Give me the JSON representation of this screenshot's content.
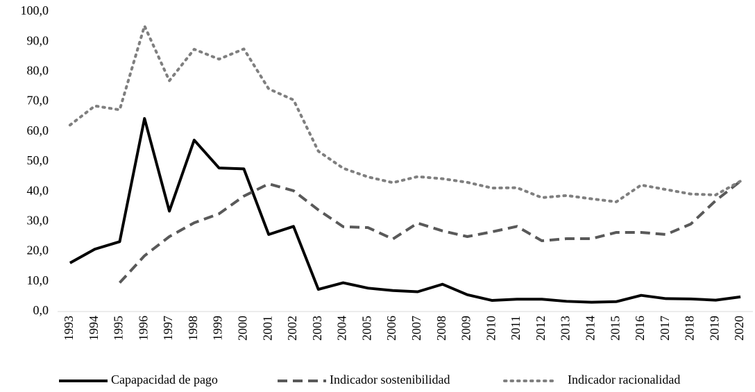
{
  "chart_data": {
    "type": "line",
    "categories": [
      "1993",
      "1994",
      "1995",
      "1996",
      "1997",
      "1998",
      "1999",
      "2000",
      "2001",
      "2002",
      "2003",
      "2004",
      "2005",
      "2006",
      "2007",
      "2008",
      "2009",
      "2010",
      "2011",
      "2012",
      "2013",
      "2014",
      "2015",
      "2016",
      "2017",
      "2018",
      "2019",
      "2020"
    ],
    "series": [
      {
        "name": "Capapacidad de pago",
        "color": "#000000",
        "dash": "solid",
        "values": [
          16.2,
          20.8,
          23.3,
          64.4,
          33.5,
          57.2,
          47.9,
          47.6,
          25.7,
          28.4,
          7.4,
          9.6,
          7.8,
          7.0,
          6.6,
          9.1,
          5.6,
          3.7,
          4.1,
          4.1,
          3.4,
          3.1,
          3.3,
          5.4,
          4.3,
          4.2,
          3.8,
          4.9
        ]
      },
      {
        "name": "Indicador sostenibilidad",
        "color": "#595959",
        "dash": "dashed",
        "values": [
          null,
          null,
          9.6,
          18.6,
          25.0,
          29.6,
          32.6,
          38.5,
          42.6,
          40.3,
          33.9,
          28.3,
          28.0,
          24.2,
          29.5,
          26.9,
          25.0,
          26.6,
          28.4,
          23.6,
          24.3,
          24.3,
          26.4,
          26.4,
          25.7,
          29.2,
          37.0,
          43.5
        ]
      },
      {
        "name": "Indicador racionalidad",
        "color": "#7f7f7f",
        "dash": "dotted",
        "values": [
          62.2,
          68.6,
          67.3,
          95.3,
          77.0,
          87.5,
          84.2,
          87.6,
          74.3,
          70.6,
          53.5,
          47.8,
          44.9,
          43.0,
          45.0,
          44.3,
          43.1,
          41.2,
          41.3,
          38.0,
          38.7,
          37.6,
          36.6,
          42.2,
          40.7,
          39.2,
          38.9,
          43.5
        ]
      }
    ],
    "ylim": [
      0,
      100
    ],
    "yticks": [
      {
        "value": 0,
        "label": "0,0"
      },
      {
        "value": 10,
        "label": "10,0"
      },
      {
        "value": 20,
        "label": "20,0"
      },
      {
        "value": 30,
        "label": "30,0"
      },
      {
        "value": 40,
        "label": "40,0"
      },
      {
        "value": 50,
        "label": "50,0"
      },
      {
        "value": 60,
        "label": "60,0"
      },
      {
        "value": 70,
        "label": "70,0"
      },
      {
        "value": 80,
        "label": "80,0"
      },
      {
        "value": 90,
        "label": "90,0"
      },
      {
        "value": 100,
        "label": "100,0"
      }
    ],
    "grid": false,
    "legend": "bottom"
  }
}
